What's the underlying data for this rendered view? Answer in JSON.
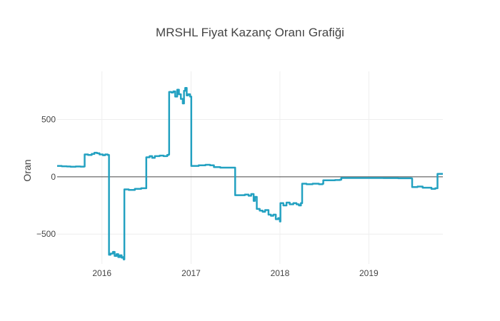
{
  "chart_data": {
    "type": "line",
    "title": "MRSHL Fiyat Kazanç Oranı Grafiği",
    "xlabel": "",
    "ylabel": "Oran",
    "xlim": [
      "2015-07-01",
      "2019-11-01"
    ],
    "ylim": [
      -760,
      920
    ],
    "x_ticks": [
      {
        "date": "2016-01-01",
        "label": "2016"
      },
      {
        "date": "2017-01-01",
        "label": "2017"
      },
      {
        "date": "2018-01-01",
        "label": "2018"
      },
      {
        "date": "2019-01-01",
        "label": "2019"
      }
    ],
    "y_ticks": [
      {
        "value": 500,
        "label": "500"
      },
      {
        "value": 0,
        "label": "0"
      },
      {
        "value": -500,
        "label": "−500"
      }
    ],
    "grid": true,
    "zero_line": true,
    "line_color": "#23a1c1",
    "series": [
      {
        "name": "",
        "points": [
          [
            "2015-07-01",
            95
          ],
          [
            "2015-07-20",
            92
          ],
          [
            "2015-08-10",
            90
          ],
          [
            "2015-08-25",
            88
          ],
          [
            "2015-09-15",
            90
          ],
          [
            "2015-10-05",
            89
          ],
          [
            "2015-10-20",
            90
          ],
          [
            "2015-10-22",
            195
          ],
          [
            "2015-11-05",
            190
          ],
          [
            "2015-11-20",
            200
          ],
          [
            "2015-12-01",
            210
          ],
          [
            "2015-12-12",
            205
          ],
          [
            "2015-12-22",
            195
          ],
          [
            "2016-01-05",
            188
          ],
          [
            "2016-01-14",
            195
          ],
          [
            "2016-01-25",
            190
          ],
          [
            "2016-01-30",
            -680
          ],
          [
            "2016-02-05",
            -670
          ],
          [
            "2016-02-15",
            -655
          ],
          [
            "2016-02-22",
            -690
          ],
          [
            "2016-03-01",
            -675
          ],
          [
            "2016-03-08",
            -700
          ],
          [
            "2016-03-15",
            -685
          ],
          [
            "2016-03-22",
            -705
          ],
          [
            "2016-03-28",
            -700
          ],
          [
            "2016-03-30",
            -720
          ],
          [
            "2016-04-02",
            -110
          ],
          [
            "2016-04-20",
            -115
          ],
          [
            "2016-05-15",
            -105
          ],
          [
            "2016-06-10",
            -100
          ],
          [
            "2016-06-28",
            -100
          ],
          [
            "2016-07-01",
            170
          ],
          [
            "2016-07-15",
            180
          ],
          [
            "2016-07-25",
            165
          ],
          [
            "2016-08-05",
            180
          ],
          [
            "2016-08-25",
            185
          ],
          [
            "2016-09-10",
            180
          ],
          [
            "2016-09-25",
            190
          ],
          [
            "2016-10-01",
            195
          ],
          [
            "2016-10-03",
            740
          ],
          [
            "2016-10-12",
            735
          ],
          [
            "2016-10-20",
            745
          ],
          [
            "2016-10-28",
            700
          ],
          [
            "2016-11-05",
            760
          ],
          [
            "2016-11-12",
            720
          ],
          [
            "2016-11-20",
            680
          ],
          [
            "2016-11-28",
            640
          ],
          [
            "2016-12-03",
            750
          ],
          [
            "2016-12-08",
            775
          ],
          [
            "2016-12-14",
            710
          ],
          [
            "2016-12-20",
            720
          ],
          [
            "2016-12-28",
            700
          ],
          [
            "2017-01-02",
            95
          ],
          [
            "2017-02-01",
            100
          ],
          [
            "2017-03-01",
            105
          ],
          [
            "2017-03-20",
            100
          ],
          [
            "2017-04-05",
            85
          ],
          [
            "2017-05-01",
            80
          ],
          [
            "2017-06-01",
            80
          ],
          [
            "2017-06-28",
            80
          ],
          [
            "2017-07-01",
            -160
          ],
          [
            "2017-07-20",
            -160
          ],
          [
            "2017-08-10",
            -155
          ],
          [
            "2017-08-25",
            -165
          ],
          [
            "2017-09-05",
            -150
          ],
          [
            "2017-09-15",
            -210
          ],
          [
            "2017-09-20",
            -175
          ],
          [
            "2017-09-28",
            -280
          ],
          [
            "2017-10-10",
            -295
          ],
          [
            "2017-10-22",
            -305
          ],
          [
            "2017-11-01",
            -290
          ],
          [
            "2017-11-15",
            -330
          ],
          [
            "2017-11-25",
            -340
          ],
          [
            "2017-12-05",
            -330
          ],
          [
            "2017-12-15",
            -370
          ],
          [
            "2017-12-25",
            -360
          ],
          [
            "2018-01-01",
            -390
          ],
          [
            "2018-01-03",
            -230
          ],
          [
            "2018-01-15",
            -250
          ],
          [
            "2018-01-28",
            -225
          ],
          [
            "2018-02-10",
            -240
          ],
          [
            "2018-02-25",
            -230
          ],
          [
            "2018-03-10",
            -240
          ],
          [
            "2018-03-20",
            -250
          ],
          [
            "2018-03-28",
            -230
          ],
          [
            "2018-04-02",
            -60
          ],
          [
            "2018-04-20",
            -65
          ],
          [
            "2018-05-15",
            -60
          ],
          [
            "2018-06-10",
            -65
          ],
          [
            "2018-06-25",
            -60
          ],
          [
            "2018-06-28",
            -30
          ],
          [
            "2018-07-20",
            -30
          ],
          [
            "2018-08-15",
            -28
          ],
          [
            "2018-09-05",
            -25
          ],
          [
            "2018-09-10",
            -10
          ],
          [
            "2018-11-01",
            -10
          ],
          [
            "2019-01-01",
            -10
          ],
          [
            "2019-03-01",
            -11
          ],
          [
            "2019-05-01",
            -13
          ],
          [
            "2019-06-25",
            -14
          ],
          [
            "2019-06-28",
            -90
          ],
          [
            "2019-07-20",
            -85
          ],
          [
            "2019-08-10",
            -95
          ],
          [
            "2019-09-01",
            -95
          ],
          [
            "2019-09-15",
            -105
          ],
          [
            "2019-10-01",
            -100
          ],
          [
            "2019-10-08",
            -100
          ],
          [
            "2019-10-10",
            25
          ],
          [
            "2019-11-01",
            25
          ]
        ]
      }
    ]
  }
}
